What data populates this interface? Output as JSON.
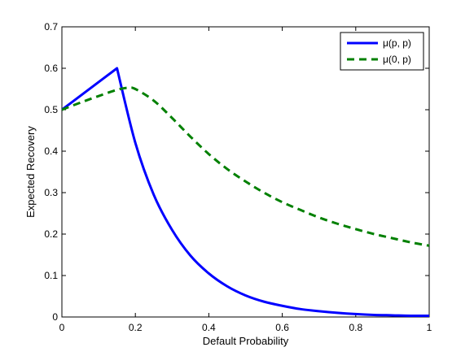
{
  "chart_data": {
    "type": "line",
    "title": "",
    "xlabel": "Default Probability",
    "ylabel": "Expected Recovery",
    "xlim": [
      0,
      1
    ],
    "ylim": [
      0,
      0.7
    ],
    "xticks": [
      0,
      0.2,
      0.4,
      0.6,
      0.8,
      1
    ],
    "xtick_labels": [
      "0",
      "0.2",
      "0.4",
      "0.6",
      "0.8",
      "1"
    ],
    "yticks": [
      0,
      0.1,
      0.2,
      0.3,
      0.4,
      0.5,
      0.6,
      0.7
    ],
    "ytick_labels": [
      "0",
      "0.1",
      "0.2",
      "0.3",
      "0.4",
      "0.5",
      "0.6",
      "0.7"
    ],
    "grid": false,
    "legend_position": "top-right",
    "series": [
      {
        "name": "μ(p, p)",
        "color": "#0000ff",
        "style": "solid",
        "x": [
          0,
          0.15,
          0.2,
          0.25,
          0.3,
          0.35,
          0.4,
          0.45,
          0.5,
          0.55,
          0.6,
          0.65,
          0.7,
          0.75,
          0.8,
          0.85,
          0.9,
          0.95,
          1
        ],
        "y": [
          0.5,
          0.6,
          0.42,
          0.295,
          0.21,
          0.148,
          0.105,
          0.074,
          0.052,
          0.037,
          0.027,
          0.019,
          0.014,
          0.01,
          0.007,
          0.005,
          0.004,
          0.003,
          0.003
        ]
      },
      {
        "name": "μ(0, p)",
        "color": "#008000",
        "style": "dashed",
        "x": [
          0,
          0.05,
          0.1,
          0.15,
          0.18,
          0.2,
          0.25,
          0.3,
          0.35,
          0.4,
          0.45,
          0.5,
          0.55,
          0.6,
          0.65,
          0.7,
          0.75,
          0.8,
          0.85,
          0.9,
          0.95,
          1
        ],
        "y": [
          0.5,
          0.517,
          0.533,
          0.548,
          0.553,
          0.55,
          0.522,
          0.48,
          0.435,
          0.393,
          0.357,
          0.327,
          0.3,
          0.277,
          0.258,
          0.24,
          0.225,
          0.212,
          0.2,
          0.19,
          0.18,
          0.172
        ]
      }
    ]
  }
}
